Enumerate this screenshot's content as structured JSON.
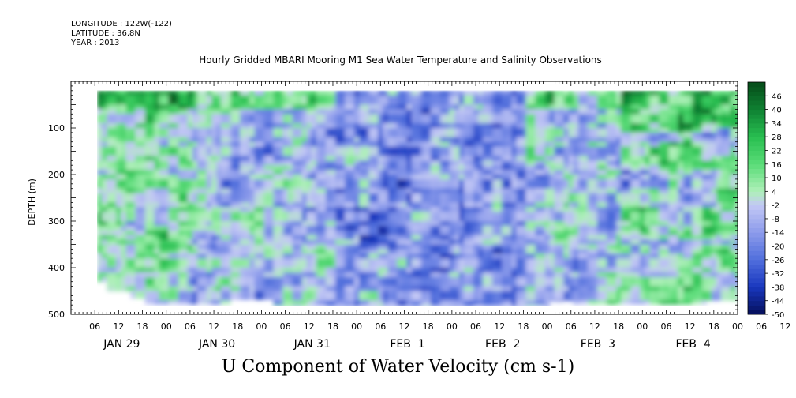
{
  "header": {
    "longitude": "LONGITUDE : 122W(-122)",
    "latitude": "LATITUDE : 36.8N",
    "year": "YEAR : 2013"
  },
  "plot_title": "Hourly Gridded MBARI Mooring M1 Sea Water Temperature and Salinity Observations",
  "bottom_title": "U Component of Water Velocity (cm s-1)",
  "chart_data": {
    "type": "heatmap",
    "title": "Hourly Gridded MBARI Mooring M1 Sea Water Temperature and Salinity Observations",
    "subtitle": "U Component of Water Velocity (cm s-1)",
    "ylabel": "DEPTH (m)",
    "xlabel": "",
    "y_ticks": [
      100,
      200,
      300,
      400,
      500
    ],
    "y_range": [
      500,
      10
    ],
    "x_hour_labels": [
      "06",
      "12",
      "18",
      "00",
      "06",
      "12",
      "18",
      "00",
      "06",
      "12",
      "18",
      "00",
      "06",
      "12",
      "18",
      "00",
      "06",
      "12",
      "18",
      "00",
      "06",
      "12",
      "18",
      "00",
      "06",
      "12",
      "18",
      "00",
      "06",
      "12",
      "18",
      "00"
    ],
    "x_day_labels": [
      "JAN 29",
      "JAN 30",
      "JAN 31",
      "FEB  1",
      "FEB  2",
      "FEB  3",
      "FEB  4"
    ],
    "x_range_hours": [
      0,
      168
    ],
    "colorbar_labels": [
      "46",
      "40",
      "34",
      "28",
      "22",
      "16",
      "10",
      "4",
      "-2",
      "-8",
      "-14",
      "-20",
      "-26",
      "-32",
      "-38",
      "-44",
      "-50"
    ],
    "colorbar_range": [
      -50,
      52
    ],
    "colors": {
      "deep_negative": "#001a6e",
      "negative": "#4d6cd6",
      "slightly_negative": "#b6bdf3",
      "slightly_positive": "#a8ecb4",
      "positive": "#34d265",
      "strong_positive": "#0b7a2c"
    },
    "time_depth_pattern": [
      {
        "day": "JAN 29",
        "near_surface": "positive",
        "mid_depth": "mixed",
        "deep": "positive"
      },
      {
        "day": "JAN 30",
        "near_surface": "positive",
        "mid_depth": "negative",
        "deep": "mixed"
      },
      {
        "day": "JAN 31",
        "near_surface": "positive",
        "mid_depth": "negative",
        "deep": "mixed"
      },
      {
        "day": "FEB  1",
        "near_surface": "negative",
        "mid_depth": "strongly negative",
        "deep": "mixed"
      },
      {
        "day": "FEB  2",
        "near_surface": "negative",
        "mid_depth": "negative",
        "deep": "mixed"
      },
      {
        "day": "FEB  3",
        "near_surface": "positive",
        "mid_depth": "alternating bands",
        "deep": "positive"
      },
      {
        "day": "FEB  4",
        "near_surface": "strongly positive",
        "mid_depth": "mixed",
        "deep": "mixed"
      }
    ]
  }
}
